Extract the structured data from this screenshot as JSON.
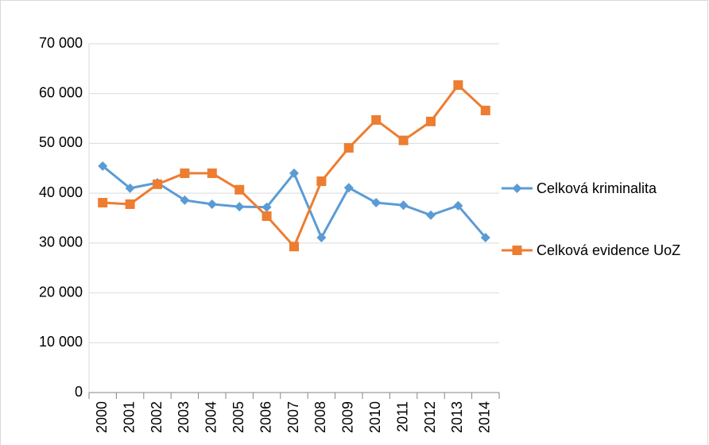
{
  "chart_data": {
    "type": "line",
    "categories": [
      "2000",
      "2001",
      "2002",
      "2003",
      "2004",
      "2005",
      "2006",
      "2007",
      "2008",
      "2009",
      "2010",
      "2011",
      "2012",
      "2013",
      "2014"
    ],
    "series": [
      {
        "name": "Celková kriminalita",
        "color": "#5b9bd5",
        "marker": "diamond",
        "values": [
          45450,
          41000,
          42100,
          38600,
          37800,
          37300,
          37200,
          44000,
          31100,
          41100,
          38100,
          37600,
          35600,
          37500,
          31100
        ]
      },
      {
        "name": "Celková evidence UoZ",
        "color": "#ed7d31",
        "marker": "square",
        "values": [
          38100,
          37800,
          41800,
          44000,
          44000,
          40700,
          35400,
          29300,
          42400,
          49100,
          54700,
          50600,
          54400,
          61700,
          56600
        ]
      }
    ],
    "ylim": [
      0,
      70000
    ],
    "yticks": [
      0,
      {
        "value": 10000,
        "label": "10 000"
      },
      {
        "value": 20000,
        "label": "20 000"
      },
      {
        "value": 30000,
        "label": "30 000"
      },
      {
        "value": 40000,
        "label": "40 000"
      },
      {
        "value": 50000,
        "label": "50 000"
      },
      {
        "value": 60000,
        "label": "60 000"
      },
      {
        "value": 70000,
        "label": "70 000"
      }
    ],
    "grid": true,
    "legend": "right"
  }
}
